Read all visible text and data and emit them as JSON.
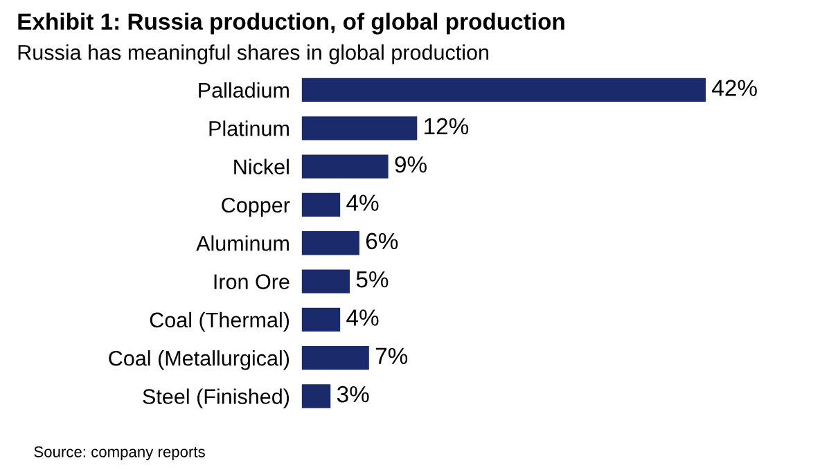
{
  "chart_data": {
    "type": "bar",
    "orientation": "horizontal",
    "title": "Exhibit 1: Russia production, of global production",
    "subtitle": "Russia has meaningful shares in global production",
    "categories": [
      "Palladium",
      "Platinum",
      "Nickel",
      "Copper",
      "Aluminum",
      "Iron Ore",
      "Coal (Thermal)",
      "Coal (Metallurgical)",
      "Steel (Finished)"
    ],
    "values": [
      42,
      12,
      9,
      4,
      6,
      5,
      4,
      7,
      3
    ],
    "value_labels": [
      "42%",
      "12%",
      "9%",
      "4%",
      "6%",
      "5%",
      "4%",
      "7%",
      "3%"
    ],
    "color": "#1b2a6b",
    "annotations": [
      "Source: company reports"
    ],
    "grid": false,
    "legend": false
  }
}
